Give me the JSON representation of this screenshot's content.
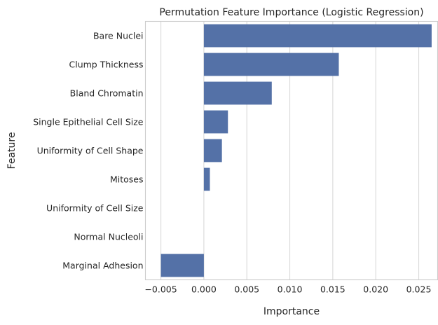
{
  "chart_data": {
    "type": "bar",
    "orientation": "horizontal",
    "title": "Permutation Feature Importance (Logistic Regression)",
    "xlabel": "Importance",
    "ylabel": "Feature",
    "categories": [
      "Bare Nuclei",
      "Clump Thickness",
      "Bland Chromatin",
      "Single Epithelial Cell Size",
      "Uniformity of Cell Shape",
      "Mitoses",
      "Uniformity of Cell Size",
      "Normal Nucleoli",
      "Marginal Adhesion"
    ],
    "values": [
      0.0265,
      0.0157,
      0.0079,
      0.0028,
      0.0021,
      0.0007,
      0.0,
      0.0,
      -0.005
    ],
    "xlim": [
      -0.0068,
      0.0272
    ],
    "xticks": [
      -0.005,
      0.0,
      0.005,
      0.01,
      0.015,
      0.02,
      0.025
    ],
    "xtick_labels": [
      "−0.005",
      "0.000",
      "0.005",
      "0.010",
      "0.015",
      "0.020",
      "0.025"
    ],
    "grid": "x",
    "bar_color": "#5471a7",
    "background": "#ffffff"
  }
}
